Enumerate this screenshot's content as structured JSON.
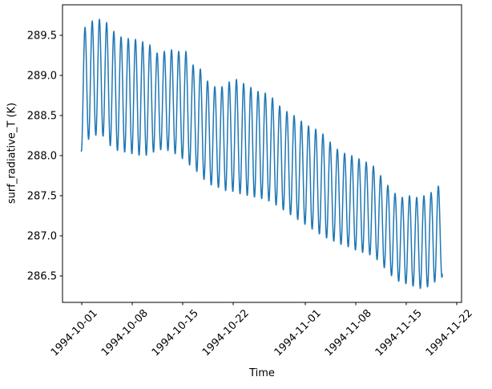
{
  "chart_data": {
    "type": "line",
    "title": "",
    "xlabel": "Time",
    "ylabel": "surf_radiative_T (K)",
    "line_color": "#1f77b4",
    "axes_color": "#000000",
    "background_color": "#ffffff",
    "grid": false,
    "legend": false,
    "x_tick_labels": [
      "1994-10-01",
      "1994-10-08",
      "1994-10-15",
      "1994-10-22",
      "1994-11-01",
      "1994-11-08",
      "1994-11-15",
      "1994-11-22"
    ],
    "x_tick_days": [
      3,
      10,
      17,
      24,
      34,
      41,
      48,
      55
    ],
    "x_day0_date": "1994-09-28",
    "xlim_days": [
      0.33,
      55.67
    ],
    "y_tick_labels": [
      "286.5",
      "287.0",
      "287.5",
      "288.0",
      "288.5",
      "289.0",
      "289.5"
    ],
    "y_tick_values": [
      286.5,
      287.0,
      287.5,
      288.0,
      288.5,
      289.0,
      289.5
    ],
    "ylim": [
      286.17,
      289.88
    ],
    "series": [
      {
        "name": "surf_radiative_T",
        "description": "Diurnal (1-day period) oscillation with declining trend; values in K. Envelope given per day; peaks occur at day+0.45, troughs at day-0.05 (days counted from 1994-09-28).",
        "start_day": 2.93,
        "end_day": 53.0,
        "first_peak_day": 3,
        "peak_day_offset": 0.45,
        "trough_day_offset": -0.05,
        "daily_peak_dates_start": "1994-10-01",
        "daily_peaks": [
          289.6,
          289.68,
          289.7,
          289.66,
          289.55,
          289.48,
          289.46,
          289.45,
          289.42,
          289.38,
          289.28,
          289.3,
          289.32,
          289.3,
          289.3,
          289.13,
          289.08,
          288.93,
          288.86,
          288.86,
          288.92,
          288.95,
          288.9,
          288.85,
          288.8,
          288.78,
          288.72,
          288.62,
          288.55,
          288.5,
          288.43,
          288.37,
          288.33,
          288.27,
          288.17,
          288.08,
          288.03,
          288.0,
          287.96,
          287.92,
          287.87,
          287.75,
          287.63,
          287.53,
          287.48,
          287.5,
          287.48,
          287.5,
          287.54,
          287.62
        ],
        "daily_trough_dates_start": "1994-10-01",
        "daily_troughs": [
          288.05,
          288.2,
          288.25,
          288.24,
          288.12,
          288.06,
          288.04,
          288.02,
          288.0,
          288.0,
          288.04,
          288.07,
          288.06,
          288.02,
          287.96,
          287.88,
          287.8,
          287.7,
          287.63,
          287.6,
          287.56,
          287.55,
          287.52,
          287.5,
          287.48,
          287.46,
          287.43,
          287.38,
          287.32,
          287.26,
          287.2,
          287.14,
          287.08,
          287.02,
          286.97,
          286.93,
          286.89,
          286.86,
          286.82,
          286.79,
          286.76,
          286.7,
          286.6,
          286.5,
          286.43,
          286.4,
          286.37,
          286.34,
          286.36,
          286.42,
          286.48
        ]
      }
    ]
  }
}
